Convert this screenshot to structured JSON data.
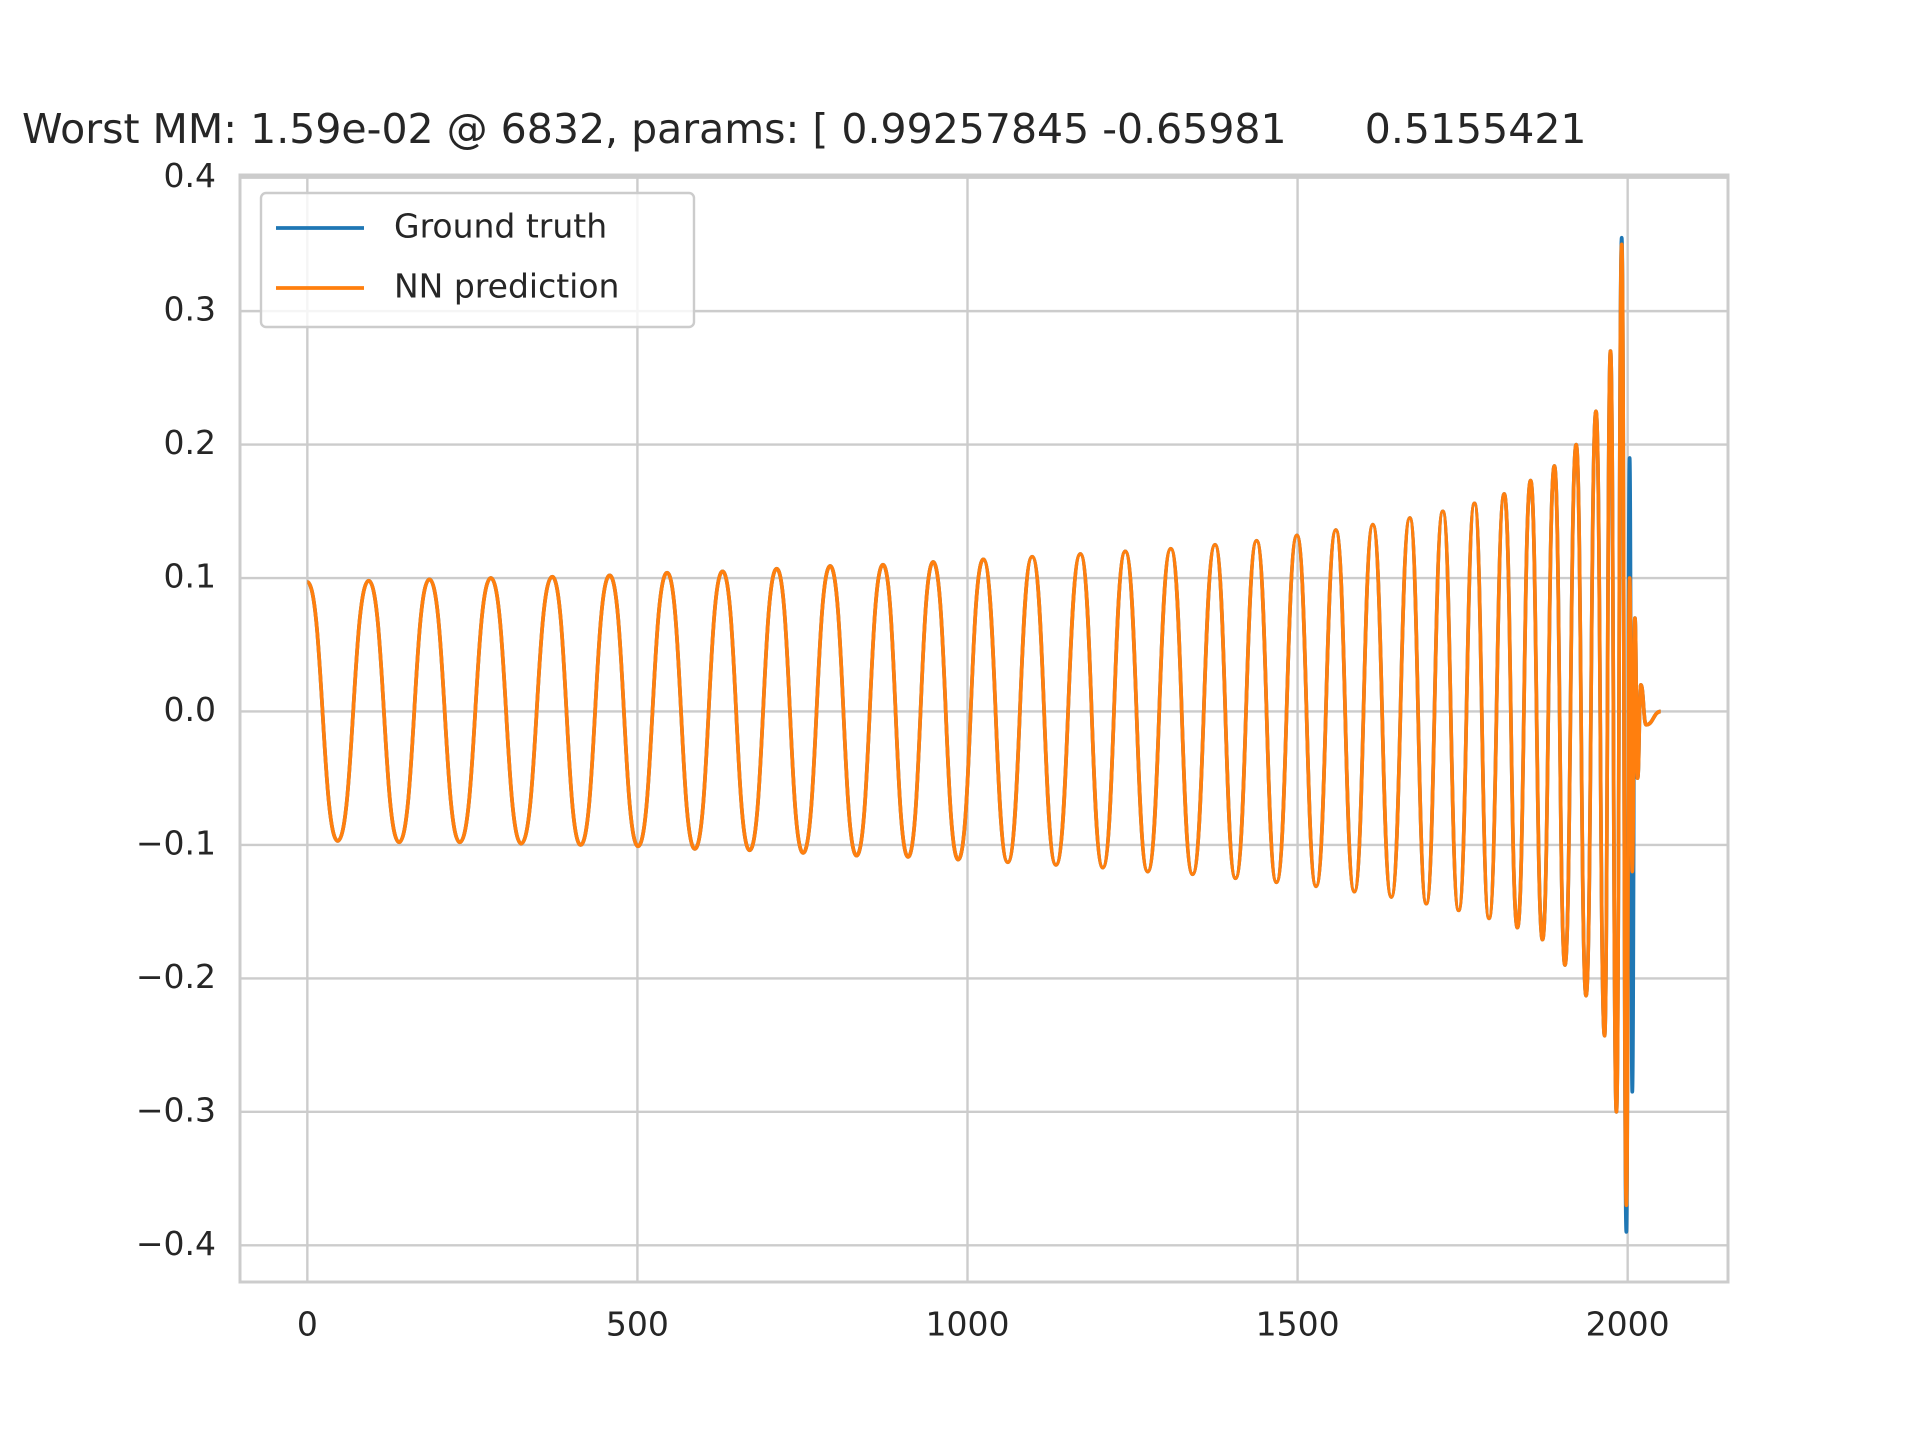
{
  "chart_data": {
    "type": "line",
    "title": "Worst MM: 1.59e-02 @ 6832, params: [ 0.99257845 -0.65981      0.5155421",
    "x": [
      0,
      46,
      93,
      139,
      185,
      231,
      278,
      324,
      371,
      414,
      458,
      501,
      545,
      587,
      629,
      670,
      711,
      751,
      792,
      832,
      872,
      910,
      948,
      986,
      1024,
      1061,
      1098,
      1134,
      1171,
      1205,
      1239,
      1273,
      1308,
      1341,
      1375,
      1406,
      1438,
      1468,
      1499,
      1528,
      1558,
      1586,
      1614,
      1642,
      1670,
      1695,
      1720,
      1744,
      1768,
      1790,
      1813,
      1833,
      1853,
      1871,
      1889,
      1905,
      1922,
      1937,
      1952,
      1965,
      1974,
      1983,
      1991,
      1998,
      2003,
      2007,
      2011,
      2015,
      2020,
      2028,
      2050
    ],
    "series": [
      {
        "name": "Ground truth",
        "color": "#1f77b4",
        "values": [
          0.097,
          -0.097,
          0.098,
          -0.098,
          0.099,
          -0.098,
          0.1,
          -0.099,
          0.101,
          -0.1,
          0.102,
          -0.101,
          0.104,
          -0.103,
          0.105,
          -0.104,
          0.107,
          -0.106,
          0.109,
          -0.108,
          0.11,
          -0.109,
          0.112,
          -0.111,
          0.114,
          -0.113,
          0.116,
          -0.115,
          0.118,
          -0.117,
          0.12,
          -0.12,
          0.122,
          -0.122,
          0.125,
          -0.125,
          0.128,
          -0.128,
          0.132,
          -0.131,
          0.136,
          -0.135,
          0.14,
          -0.139,
          0.145,
          -0.144,
          0.15,
          -0.149,
          0.156,
          -0.155,
          0.163,
          -0.162,
          0.173,
          -0.171,
          0.184,
          -0.19,
          0.2,
          -0.213,
          0.225,
          -0.243,
          0.27,
          -0.3,
          0.355,
          -0.39,
          0.19,
          -0.285,
          0.07,
          -0.05,
          0.02,
          -0.01,
          0
        ]
      },
      {
        "name": "NN prediction",
        "color": "#ff7f0e",
        "values": [
          0.097,
          -0.097,
          0.098,
          -0.098,
          0.099,
          -0.098,
          0.1,
          -0.099,
          0.101,
          -0.1,
          0.102,
          -0.101,
          0.104,
          -0.103,
          0.105,
          -0.104,
          0.107,
          -0.106,
          0.109,
          -0.108,
          0.11,
          -0.109,
          0.112,
          -0.111,
          0.114,
          -0.113,
          0.116,
          -0.115,
          0.118,
          -0.117,
          0.12,
          -0.12,
          0.122,
          -0.122,
          0.125,
          -0.125,
          0.128,
          -0.128,
          0.132,
          -0.131,
          0.136,
          -0.135,
          0.14,
          -0.139,
          0.145,
          -0.144,
          0.15,
          -0.149,
          0.156,
          -0.155,
          0.163,
          -0.162,
          0.173,
          -0.171,
          0.184,
          -0.19,
          0.2,
          -0.213,
          0.225,
          -0.243,
          0.27,
          -0.3,
          0.35,
          -0.37,
          0.1,
          -0.12,
          0.07,
          -0.05,
          0.02,
          -0.01,
          0
        ]
      }
    ],
    "xlim": [
      -102,
      2152
    ],
    "xticks": [
      0,
      500,
      1000,
      1500,
      2000
    ],
    "ylim": [
      -0.4275,
      0.402
    ],
    "yticks": [
      {
        "value": -0.4,
        "label": "−0.4"
      },
      {
        "value": -0.3,
        "label": "−0.3"
      },
      {
        "value": -0.2,
        "label": "−0.2"
      },
      {
        "value": -0.1,
        "label": "−0.1"
      },
      {
        "value": 0,
        "label": "0.0"
      },
      0.1,
      0.2,
      0.3,
      0.4
    ],
    "grid": true,
    "legend": "upper left"
  }
}
